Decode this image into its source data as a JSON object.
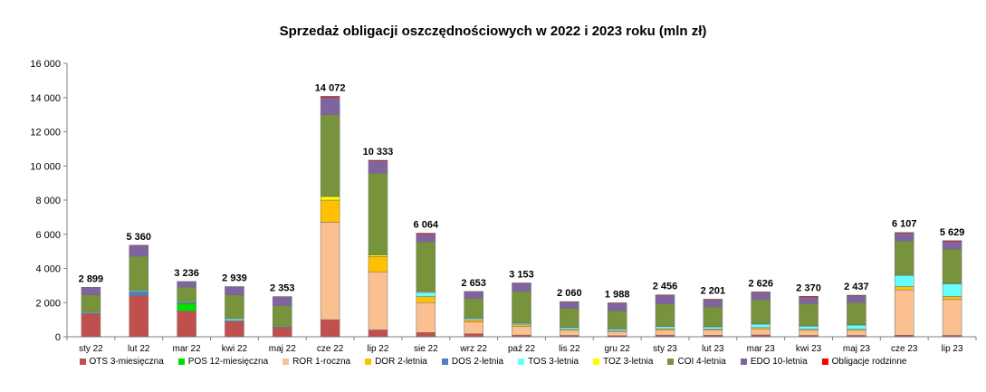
{
  "chart_data": {
    "type": "bar",
    "stacked": true,
    "title": "Sprzedaż obligacji oszczędnościowych w 2022 i 2023 roku (mln zł)",
    "xlabel": "",
    "ylabel": "",
    "ylim": [
      0,
      16000
    ],
    "yticks": [
      0,
      2000,
      4000,
      6000,
      8000,
      10000,
      12000,
      14000,
      16000
    ],
    "ytick_labels": [
      "0",
      "2 000",
      "4 000",
      "6 000",
      "8 000",
      "10 000",
      "12 000",
      "14 000",
      "16 000"
    ],
    "grid": false,
    "legend_position": "bottom",
    "categories": [
      "sty 22",
      "lut 22",
      "mar 22",
      "kwi 22",
      "maj 22",
      "cze 22",
      "lip 22",
      "sie 22",
      "wrz 22",
      "paź 22",
      "lis 22",
      "gru 22",
      "sty 23",
      "lut 23",
      "mar 23",
      "kwi 23",
      "maj 23",
      "cze 23",
      "lip 23"
    ],
    "totals": [
      "2 899",
      "5 360",
      "3 236",
      "2 939",
      "2 353",
      "14 072",
      "10 333",
      "6 064",
      "2 653",
      "3 153",
      "2 060",
      "1 988",
      "2 456",
      "2 201",
      "2 626",
      "2 370",
      "2 437",
      "6 107",
      "5 629"
    ],
    "series": [
      {
        "name": "OTS 3-miesięczna",
        "color": "#C0504D",
        "values": [
          1350,
          2400,
          1500,
          900,
          550,
          1000,
          400,
          250,
          180,
          100,
          80,
          60,
          100,
          90,
          110,
          80,
          80,
          90,
          80
        ]
      },
      {
        "name": "POS 12-miesięczna",
        "color": "#00E000",
        "values": [
          0,
          0,
          450,
          0,
          0,
          0,
          0,
          0,
          0,
          0,
          0,
          0,
          0,
          0,
          0,
          0,
          0,
          0,
          0
        ]
      },
      {
        "name": "ROR 1-roczna",
        "color": "#FAC090",
        "values": [
          0,
          0,
          0,
          0,
          0,
          5700,
          3400,
          1750,
          700,
          500,
          300,
          250,
          300,
          300,
          350,
          300,
          300,
          2650,
          2100
        ]
      },
      {
        "name": "DOR 2-letnia",
        "color": "#FFC000",
        "values": [
          0,
          0,
          0,
          0,
          0,
          1300,
          900,
          350,
          120,
          100,
          60,
          40,
          80,
          60,
          80,
          60,
          60,
          200,
          180
        ]
      },
      {
        "name": "DOS 2-letnia",
        "color": "#4F81BD",
        "values": [
          50,
          250,
          50,
          50,
          30,
          0,
          0,
          0,
          0,
          0,
          0,
          0,
          0,
          0,
          0,
          0,
          0,
          0,
          0
        ]
      },
      {
        "name": "TOS 3-letnia",
        "color": "#66FFFF",
        "values": [
          50,
          60,
          50,
          100,
          40,
          0,
          0,
          250,
          80,
          80,
          100,
          100,
          120,
          130,
          200,
          180,
          240,
          650,
          740
        ]
      },
      {
        "name": "TOZ 3-letnia",
        "color": "#FFFF00",
        "values": [
          0,
          0,
          0,
          0,
          0,
          200,
          80,
          50,
          20,
          20,
          20,
          20,
          20,
          20,
          20,
          20,
          20,
          20,
          20
        ]
      },
      {
        "name": "COI 4-letnia",
        "color": "#77933C",
        "values": [
          1000,
          2000,
          850,
          1400,
          1200,
          4800,
          4800,
          2900,
          1150,
          1850,
          1100,
          1050,
          1300,
          1150,
          1400,
          1300,
          1300,
          2000,
          2000
        ]
      },
      {
        "name": "EDO 10-letnia",
        "color": "#8064A2",
        "values": [
          430,
          630,
          320,
          470,
          510,
          1000,
          700,
          450,
          380,
          470,
          360,
          430,
          500,
          410,
          420,
          370,
          400,
          450,
          450
        ]
      },
      {
        "name": "Obligacje rodzinne",
        "color": "#FF0000",
        "values": [
          19,
          20,
          16,
          19,
          23,
          72,
          53,
          64,
          23,
          33,
          40,
          38,
          36,
          41,
          46,
          60,
          37,
          47,
          59
        ]
      }
    ]
  }
}
